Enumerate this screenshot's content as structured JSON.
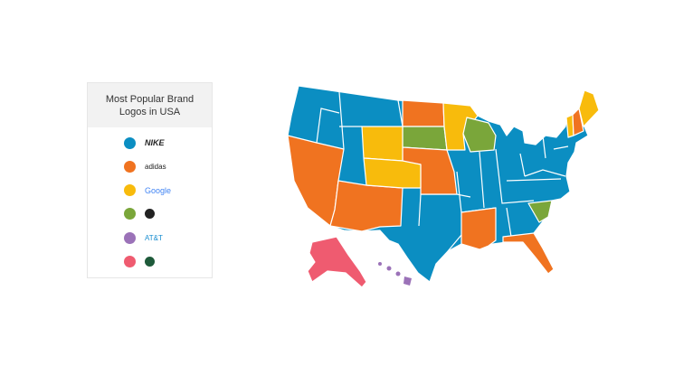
{
  "legend": {
    "title": "Most Popular Brand Logos in USA",
    "items": [
      {
        "color": "#0b8ec2",
        "logo": "NIKE"
      },
      {
        "color": "#f07320",
        "logo": "adidas"
      },
      {
        "color": "#f8bb0c",
        "logo": "Google"
      },
      {
        "color": "#7aa63a"
      },
      {
        "color": "#9b72b8",
        "logo": "AT&T"
      },
      {
        "color": "#ef5b70"
      }
    ]
  }
}
